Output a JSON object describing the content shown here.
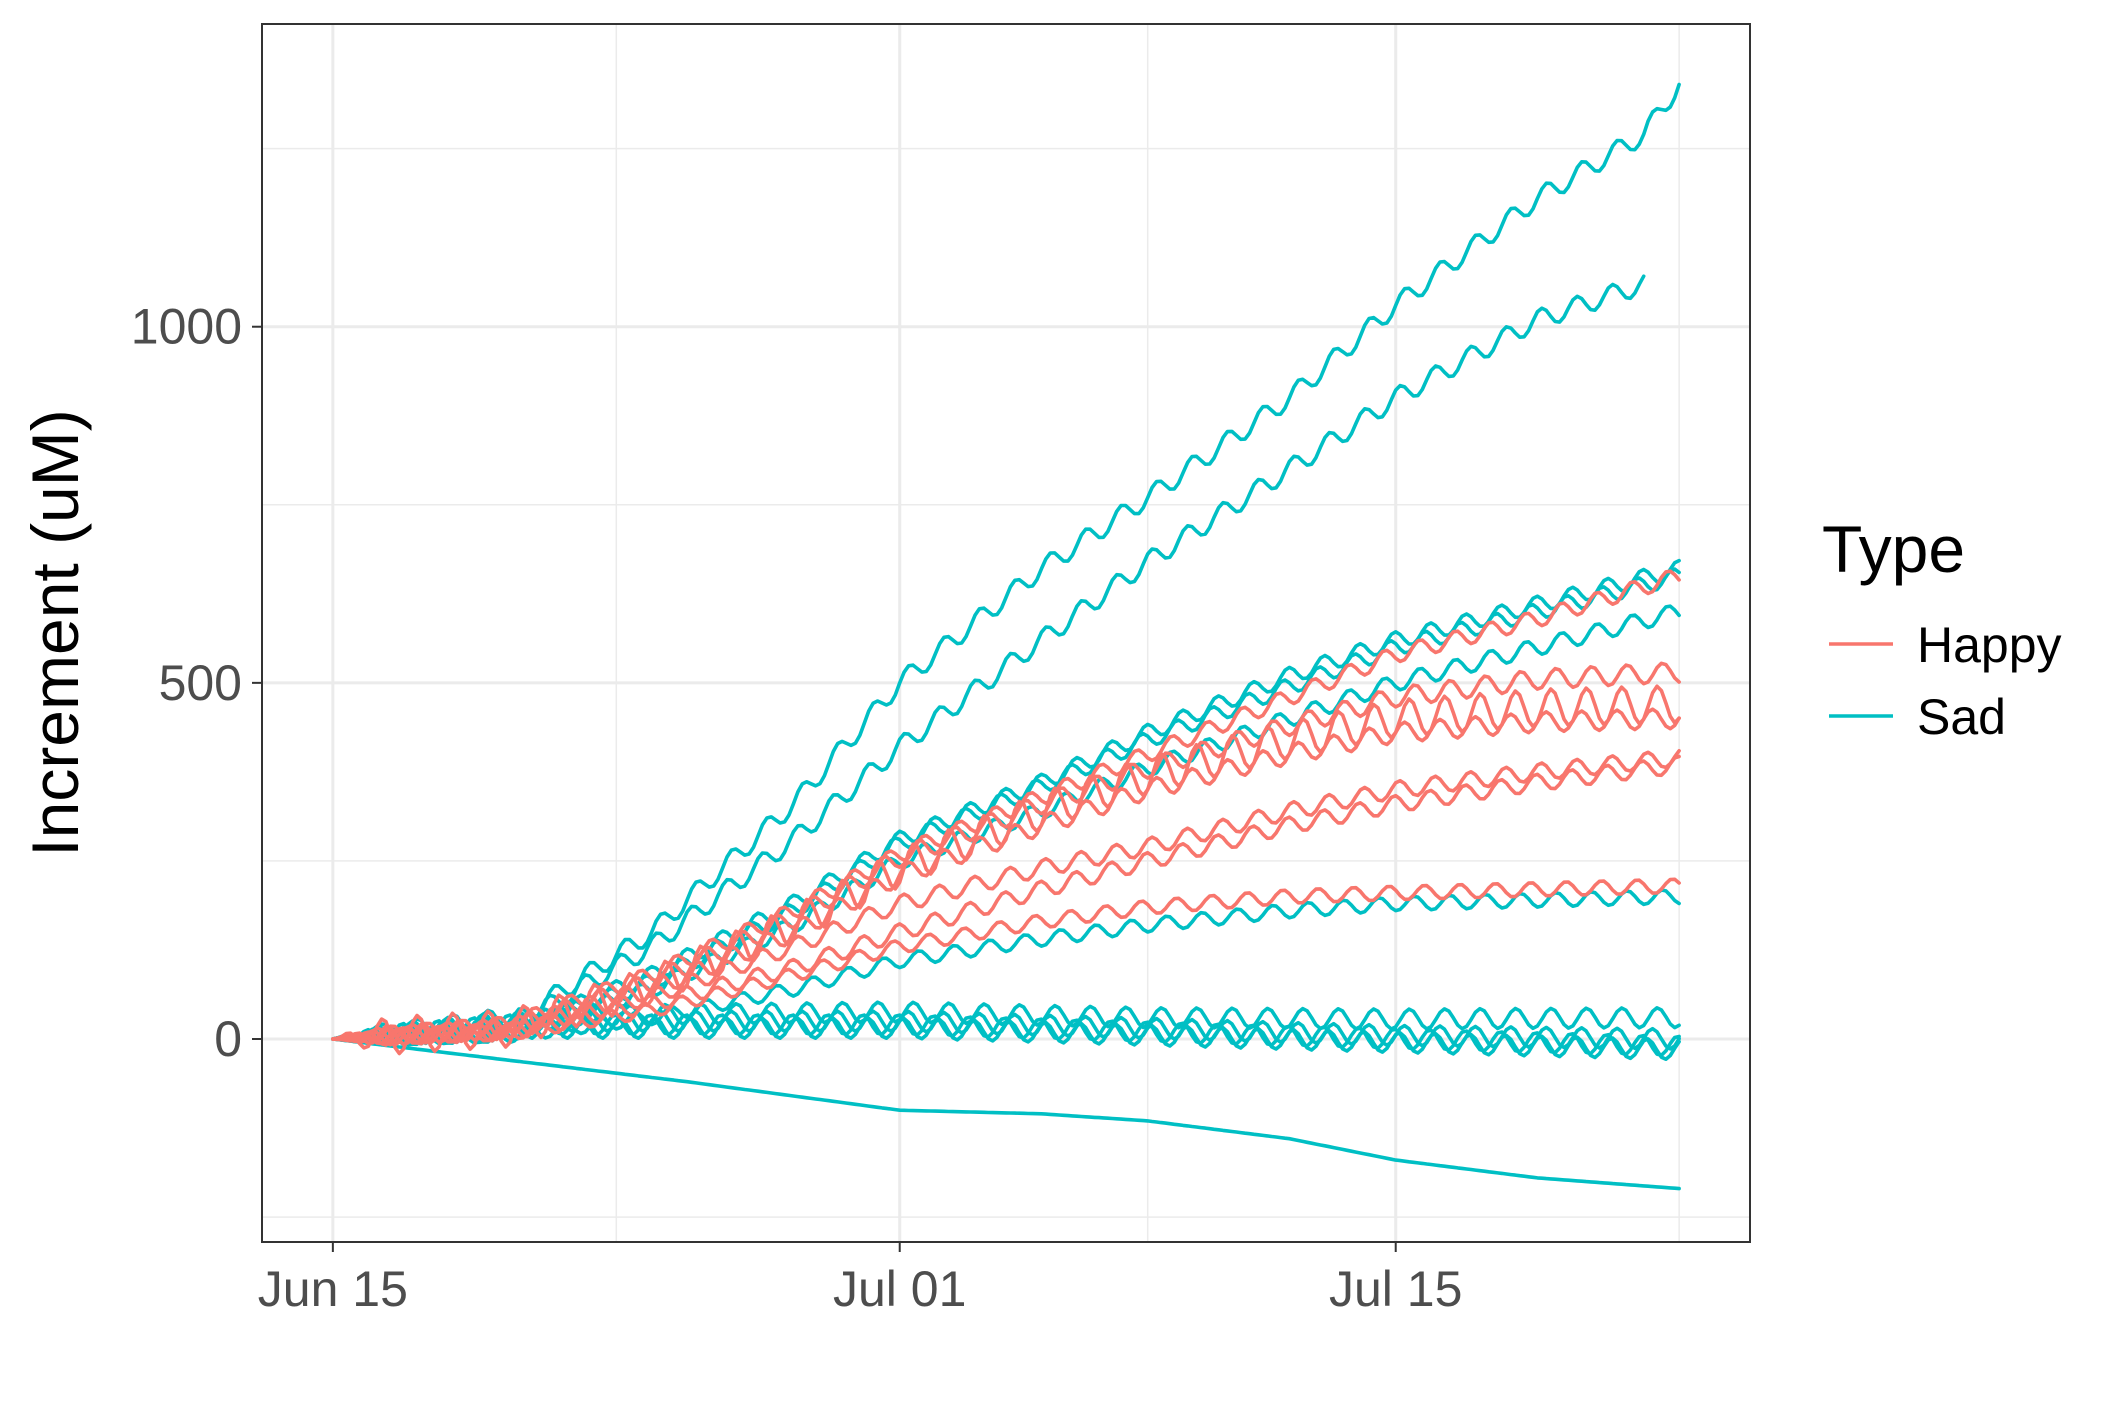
{
  "chart_data": {
    "type": "line",
    "title": "",
    "xlabel": "",
    "ylabel": "Increment (uM)",
    "x_ticks": [
      {
        "date": "2020-06-15",
        "label": "Jun 15"
      },
      {
        "date": "2020-07-01",
        "label": "Jul 01"
      },
      {
        "date": "2020-07-15",
        "label": "Jul 15"
      }
    ],
    "x_minor_ticks": [
      "2020-06-23",
      "2020-07-08",
      "2020-07-23"
    ],
    "xlim": [
      "2020-06-13",
      "2020-07-25"
    ],
    "y_ticks": [
      0,
      500,
      1000
    ],
    "y_minor_ticks": [
      -250,
      250,
      750,
      1250
    ],
    "ylim": [
      -285,
      1425
    ],
    "grid": true,
    "legend": {
      "title": "Type",
      "position": "right",
      "entries": [
        "Happy",
        "Sad"
      ]
    },
    "colors": {
      "Happy": "#F8766D",
      "Sad": "#00BFC4",
      "grid": "#EBEBEB",
      "border": "#333333"
    },
    "series": [
      {
        "group": "Sad",
        "points": [
          [
            "2020-06-15",
            0
          ],
          [
            "2020-06-20",
            20
          ],
          [
            "2020-06-24",
            150
          ],
          [
            "2020-06-28",
            330
          ],
          [
            "2020-07-01",
            500
          ],
          [
            "2020-07-05",
            660
          ],
          [
            "2020-07-08",
            760
          ],
          [
            "2020-07-12",
            900
          ],
          [
            "2020-07-15",
            1030
          ],
          [
            "2020-07-19",
            1180
          ],
          [
            "2020-07-22",
            1270
          ],
          [
            "2020-07-23",
            1340
          ]
        ],
        "wiggle": 14
      },
      {
        "group": "Sad",
        "points": [
          [
            "2020-06-15",
            0
          ],
          [
            "2020-06-20",
            15
          ],
          [
            "2020-06-24",
            130
          ],
          [
            "2020-06-28",
            280
          ],
          [
            "2020-07-01",
            410
          ],
          [
            "2020-07-05",
            560
          ],
          [
            "2020-07-08",
            670
          ],
          [
            "2020-07-12",
            800
          ],
          [
            "2020-07-15",
            900
          ],
          [
            "2020-07-19",
            1010
          ],
          [
            "2020-07-22",
            1060
          ]
        ],
        "wiggle": 14
      },
      {
        "group": "Sad",
        "points": [
          [
            "2020-06-15",
            0
          ],
          [
            "2020-06-20",
            10
          ],
          [
            "2020-06-24",
            90
          ],
          [
            "2020-06-28",
            190
          ],
          [
            "2020-07-01",
            280
          ],
          [
            "2020-07-05",
            360
          ],
          [
            "2020-07-08",
            430
          ],
          [
            "2020-07-12",
            510
          ],
          [
            "2020-07-15",
            560
          ],
          [
            "2020-07-19",
            610
          ],
          [
            "2020-07-23",
            660
          ]
        ],
        "wiggle": 12
      },
      {
        "group": "Sad",
        "points": [
          [
            "2020-06-15",
            0
          ],
          [
            "2020-06-20",
            8
          ],
          [
            "2020-06-24",
            80
          ],
          [
            "2020-06-28",
            180
          ],
          [
            "2020-07-01",
            275
          ],
          [
            "2020-07-05",
            355
          ],
          [
            "2020-07-08",
            420
          ],
          [
            "2020-07-12",
            495
          ],
          [
            "2020-07-15",
            550
          ],
          [
            "2020-07-19",
            600
          ],
          [
            "2020-07-23",
            650
          ]
        ],
        "wiggle": 12
      },
      {
        "group": "Sad",
        "points": [
          [
            "2020-06-15",
            0
          ],
          [
            "2020-06-20",
            8
          ],
          [
            "2020-06-24",
            70
          ],
          [
            "2020-06-28",
            160
          ],
          [
            "2020-07-01",
            250
          ],
          [
            "2020-07-05",
            320
          ],
          [
            "2020-07-08",
            380
          ],
          [
            "2020-07-12",
            450
          ],
          [
            "2020-07-15",
            500
          ],
          [
            "2020-07-19",
            550
          ],
          [
            "2020-07-23",
            600
          ]
        ],
        "wiggle": 12
      },
      {
        "group": "Sad",
        "points": [
          [
            "2020-06-15",
            0
          ],
          [
            "2020-06-20",
            5
          ],
          [
            "2020-06-24",
            30
          ],
          [
            "2020-06-28",
            70
          ],
          [
            "2020-07-01",
            110
          ],
          [
            "2020-07-05",
            140
          ],
          [
            "2020-07-08",
            160
          ],
          [
            "2020-07-12",
            180
          ],
          [
            "2020-07-15",
            190
          ],
          [
            "2020-07-19",
            195
          ],
          [
            "2020-07-23",
            200
          ]
        ],
        "wiggle": 10
      },
      {
        "group": "Sad",
        "points": [
          [
            "2020-06-15",
            0
          ],
          [
            "2020-06-20",
            30
          ],
          [
            "2020-06-25",
            35
          ],
          [
            "2020-07-01",
            38
          ],
          [
            "2020-07-08",
            30
          ],
          [
            "2020-07-15",
            28
          ],
          [
            "2020-07-23",
            30
          ]
        ],
        "wiggle": 14
      },
      {
        "group": "Sad",
        "points": [
          [
            "2020-06-15",
            0
          ],
          [
            "2020-06-20",
            25
          ],
          [
            "2020-06-25",
            25
          ],
          [
            "2020-07-01",
            25
          ],
          [
            "2020-07-08",
            15
          ],
          [
            "2020-07-15",
            5
          ],
          [
            "2020-07-23",
            0
          ]
        ],
        "wiggle": 14
      },
      {
        "group": "Sad",
        "points": [
          [
            "2020-06-15",
            0
          ],
          [
            "2020-06-20",
            15
          ],
          [
            "2020-06-25",
            15
          ],
          [
            "2020-07-01",
            15
          ],
          [
            "2020-07-08",
            5
          ],
          [
            "2020-07-15",
            -5
          ],
          [
            "2020-07-23",
            -15
          ]
        ],
        "wiggle": 14
      },
      {
        "group": "Sad",
        "points": [
          [
            "2020-06-15",
            0
          ],
          [
            "2020-06-20",
            20
          ],
          [
            "2020-06-25",
            20
          ],
          [
            "2020-07-01",
            20
          ],
          [
            "2020-07-08",
            10
          ],
          [
            "2020-07-15",
            0
          ],
          [
            "2020-07-23",
            -10
          ]
        ],
        "wiggle": 14
      },
      {
        "group": "Sad",
        "points": [
          [
            "2020-06-15",
            0
          ],
          [
            "2020-06-20",
            -30
          ],
          [
            "2020-06-25",
            -60
          ],
          [
            "2020-07-01",
            -100
          ],
          [
            "2020-07-05",
            -105
          ],
          [
            "2020-07-08",
            -115
          ],
          [
            "2020-07-12",
            -140
          ],
          [
            "2020-07-15",
            -170
          ],
          [
            "2020-07-19",
            -195
          ],
          [
            "2020-07-23",
            -210
          ]
        ],
        "wiggle": 0
      },
      {
        "group": "Happy",
        "points": [
          [
            "2020-06-15",
            0
          ],
          [
            "2020-06-20",
            20
          ],
          [
            "2020-06-24",
            90
          ],
          [
            "2020-06-28",
            180
          ],
          [
            "2020-07-01",
            260
          ],
          [
            "2020-07-05",
            340
          ],
          [
            "2020-07-08",
            400
          ],
          [
            "2020-07-12",
            480
          ],
          [
            "2020-07-15",
            540
          ],
          [
            "2020-07-19",
            590
          ],
          [
            "2020-07-23",
            650
          ]
        ],
        "wiggle": 12
      },
      {
        "group": "Happy",
        "points": [
          [
            "2020-06-15",
            0
          ],
          [
            "2020-06-20",
            15
          ],
          [
            "2020-06-24",
            80
          ],
          [
            "2020-06-28",
            170
          ],
          [
            "2020-07-01",
            255
          ],
          [
            "2020-07-05",
            330
          ],
          [
            "2020-07-08",
            380
          ],
          [
            "2020-07-12",
            440
          ],
          [
            "2020-07-15",
            480
          ],
          [
            "2020-07-19",
            505
          ],
          [
            "2020-07-23",
            515
          ]
        ],
        "wiggle": 14
      },
      {
        "group": "Happy",
        "points": [
          [
            "2020-06-15",
            0
          ],
          [
            "2020-06-20",
            15
          ],
          [
            "2020-06-24",
            75
          ],
          [
            "2020-06-28",
            160
          ],
          [
            "2020-07-01",
            240
          ],
          [
            "2020-07-05",
            320
          ],
          [
            "2020-07-08",
            370
          ],
          [
            "2020-07-12",
            420
          ],
          [
            "2020-07-15",
            450
          ],
          [
            "2020-07-19",
            465
          ],
          [
            "2020-07-23",
            470
          ]
        ],
        "wiggle": 26
      },
      {
        "group": "Happy",
        "points": [
          [
            "2020-06-15",
            0
          ],
          [
            "2020-06-20",
            15
          ],
          [
            "2020-06-24",
            70
          ],
          [
            "2020-06-28",
            150
          ],
          [
            "2020-07-01",
            230
          ],
          [
            "2020-07-05",
            300
          ],
          [
            "2020-07-08",
            350
          ],
          [
            "2020-07-12",
            400
          ],
          [
            "2020-07-15",
            430
          ],
          [
            "2020-07-19",
            445
          ],
          [
            "2020-07-23",
            450
          ]
        ],
        "wiggle": 14
      },
      {
        "group": "Happy",
        "points": [
          [
            "2020-06-15",
            0
          ],
          [
            "2020-06-20",
            12
          ],
          [
            "2020-06-24",
            60
          ],
          [
            "2020-06-28",
            130
          ],
          [
            "2020-07-01",
            190
          ],
          [
            "2020-07-05",
            240
          ],
          [
            "2020-07-08",
            270
          ],
          [
            "2020-07-12",
            320
          ],
          [
            "2020-07-15",
            350
          ],
          [
            "2020-07-19",
            375
          ],
          [
            "2020-07-23",
            395
          ]
        ],
        "wiggle": 12
      },
      {
        "group": "Happy",
        "points": [
          [
            "2020-06-15",
            0
          ],
          [
            "2020-06-20",
            10
          ],
          [
            "2020-06-24",
            50
          ],
          [
            "2020-06-28",
            100
          ],
          [
            "2020-07-01",
            150
          ],
          [
            "2020-07-05",
            210
          ],
          [
            "2020-07-08",
            250
          ],
          [
            "2020-07-12",
            300
          ],
          [
            "2020-07-15",
            330
          ],
          [
            "2020-07-19",
            360
          ],
          [
            "2020-07-23",
            385
          ]
        ],
        "wiggle": 12
      },
      {
        "group": "Happy",
        "points": [
          [
            "2020-06-15",
            0
          ],
          [
            "2020-06-20",
            8
          ],
          [
            "2020-06-24",
            40
          ],
          [
            "2020-06-28",
            90
          ],
          [
            "2020-07-01",
            130
          ],
          [
            "2020-07-05",
            165
          ],
          [
            "2020-07-08",
            185
          ],
          [
            "2020-07-12",
            200
          ],
          [
            "2020-07-15",
            205
          ],
          [
            "2020-07-19",
            210
          ],
          [
            "2020-07-23",
            215
          ]
        ],
        "wiggle": 10
      }
    ]
  }
}
